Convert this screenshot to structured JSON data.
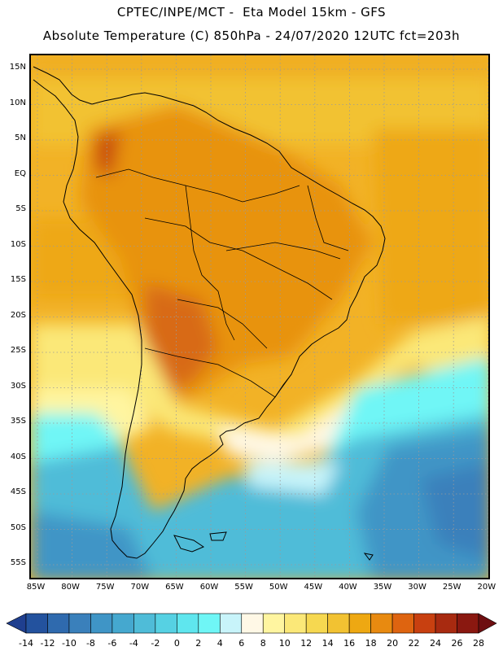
{
  "header": {
    "title_line1": "CPTEC/INPE/MCT -  Eta Model 15km - GFS",
    "title_line2": "Absolute Temperature (C) 850hPa - 24/07/2020 12UTC fct=203h"
  },
  "map": {
    "latitude_labels": [
      "15N",
      "10N",
      "5N",
      "EQ",
      "5S",
      "10S",
      "15S",
      "20S",
      "25S",
      "30S",
      "35S",
      "40S",
      "45S",
      "50S",
      "55S"
    ],
    "longitude_labels": [
      "85W",
      "80W",
      "75W",
      "70W",
      "65W",
      "60W",
      "55W",
      "50W",
      "45W",
      "40W",
      "35W",
      "30W",
      "25W",
      "20W"
    ]
  },
  "colorbar": {
    "tick_labels": [
      "-14",
      "-12",
      "-10",
      "-8",
      "-6",
      "-4",
      "-2",
      "0",
      "2",
      "4",
      "6",
      "8",
      "10",
      "12",
      "14",
      "16",
      "18",
      "20",
      "22",
      "24",
      "26",
      "28"
    ],
    "colors": [
      "#1f3f8f",
      "#23529e",
      "#2f6aae",
      "#3a80bb",
      "#3f95c6",
      "#45a8cf",
      "#4fbcd8",
      "#56d1e3",
      "#5fe6ee",
      "#6ff6f6",
      "#c8f4fa",
      "#fff8e6",
      "#fff5a0",
      "#fbe878",
      "#f6d850",
      "#f2c232",
      "#eea812",
      "#e88a10",
      "#de6410",
      "#c84010",
      "#a82a10",
      "#8a1810",
      "#6e0e10"
    ]
  }
}
